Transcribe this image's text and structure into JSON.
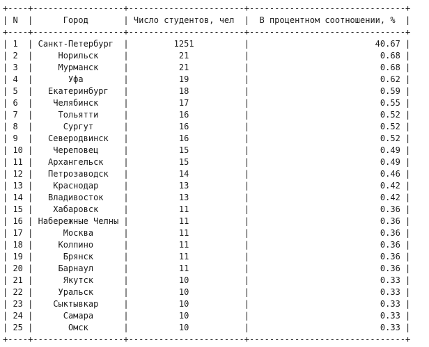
{
  "table": {
    "columns": [
      "N",
      "Город",
      "Число студентов, чел",
      "В процентном соотношении, %"
    ],
    "rows": [
      {
        "n": "1",
        "city": "Санкт-Петербург",
        "students": "1251",
        "percent": "40.67"
      },
      {
        "n": "2",
        "city": "Норильск",
        "students": "21",
        "percent": "0.68"
      },
      {
        "n": "3",
        "city": "Мурманск",
        "students": "21",
        "percent": "0.68"
      },
      {
        "n": "4",
        "city": "Уфа",
        "students": "19",
        "percent": "0.62"
      },
      {
        "n": "5",
        "city": "Екатеринбург",
        "students": "18",
        "percent": "0.59"
      },
      {
        "n": "6",
        "city": "Челябинск",
        "students": "17",
        "percent": "0.55"
      },
      {
        "n": "7",
        "city": "Тольятти",
        "students": "16",
        "percent": "0.52"
      },
      {
        "n": "8",
        "city": "Сургут",
        "students": "16",
        "percent": "0.52"
      },
      {
        "n": "9",
        "city": "Северодвинск",
        "students": "16",
        "percent": "0.52"
      },
      {
        "n": "10",
        "city": "Череповец",
        "students": "15",
        "percent": "0.49"
      },
      {
        "n": "11",
        "city": "Архангельск",
        "students": "15",
        "percent": "0.49"
      },
      {
        "n": "12",
        "city": "Петрозаводск",
        "students": "14",
        "percent": "0.46"
      },
      {
        "n": "13",
        "city": "Краснодар",
        "students": "13",
        "percent": "0.42"
      },
      {
        "n": "14",
        "city": "Владивосток",
        "students": "13",
        "percent": "0.42"
      },
      {
        "n": "15",
        "city": "Хабаровск",
        "students": "11",
        "percent": "0.36"
      },
      {
        "n": "16",
        "city": "Набережные Челны",
        "students": "11",
        "percent": "0.36"
      },
      {
        "n": "17",
        "city": "Москва",
        "students": "11",
        "percent": "0.36"
      },
      {
        "n": "18",
        "city": "Колпино",
        "students": "11",
        "percent": "0.36"
      },
      {
        "n": "19",
        "city": "Брянск",
        "students": "11",
        "percent": "0.36"
      },
      {
        "n": "20",
        "city": "Барнаул",
        "students": "11",
        "percent": "0.36"
      },
      {
        "n": "21",
        "city": "Якутск",
        "students": "10",
        "percent": "0.33"
      },
      {
        "n": "22",
        "city": "Уральск",
        "students": "10",
        "percent": "0.33"
      },
      {
        "n": "23",
        "city": "Сыктывкар",
        "students": "10",
        "percent": "0.33"
      },
      {
        "n": "24",
        "city": "Самара",
        "students": "10",
        "percent": "0.33"
      },
      {
        "n": "25",
        "city": "Омск",
        "students": "10",
        "percent": "0.33"
      }
    ]
  }
}
